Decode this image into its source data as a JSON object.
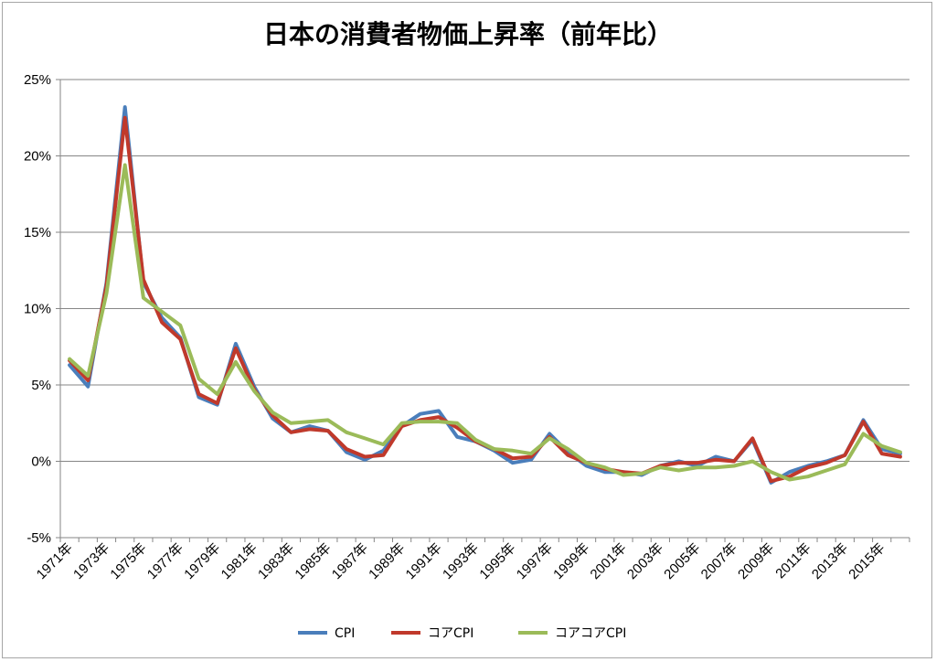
{
  "chart_data": {
    "type": "line",
    "title": "日本の消費者物価上昇率（前年比）",
    "xlabel": "",
    "ylabel": "",
    "ylim": [
      -5,
      25
    ],
    "y_ticks": [
      "25%",
      "20%",
      "15%",
      "10%",
      "5%",
      "0%",
      "-5%"
    ],
    "y_tick_values": [
      25,
      20,
      15,
      10,
      5,
      0,
      -5
    ],
    "grid": true,
    "legend_position": "bottom",
    "x": [
      1971,
      1972,
      1973,
      1974,
      1975,
      1976,
      1977,
      1978,
      1979,
      1980,
      1981,
      1982,
      1983,
      1984,
      1985,
      1986,
      1987,
      1988,
      1989,
      1990,
      1991,
      1992,
      1993,
      1994,
      1995,
      1996,
      1997,
      1998,
      1999,
      2000,
      2001,
      2002,
      2003,
      2004,
      2005,
      2006,
      2007,
      2008,
      2009,
      2010,
      2011,
      2012,
      2013,
      2014,
      2015,
      2016
    ],
    "x_tick_labels": [
      "1971年",
      "1973年",
      "1975年",
      "1977年",
      "1979年",
      "1981年",
      "1983年",
      "1985年",
      "1987年",
      "1989年",
      "1991年",
      "1993年",
      "1995年",
      "1997年",
      "1999年",
      "2001年",
      "2003年",
      "2005年",
      "2007年",
      "2009年",
      "2011年",
      "2013年",
      "2015年"
    ],
    "series": [
      {
        "name": "CPI",
        "color": "#4a7ebb",
        "values": [
          6.3,
          4.9,
          11.7,
          23.2,
          11.7,
          9.4,
          8.1,
          4.2,
          3.7,
          7.7,
          4.9,
          2.8,
          1.9,
          2.3,
          2.0,
          0.6,
          0.1,
          0.7,
          2.3,
          3.1,
          3.3,
          1.6,
          1.3,
          0.7,
          -0.1,
          0.1,
          1.8,
          0.6,
          -0.3,
          -0.7,
          -0.7,
          -0.9,
          -0.3,
          0.0,
          -0.3,
          0.3,
          0.0,
          1.4,
          -1.4,
          -0.7,
          -0.3,
          0.0,
          0.4,
          2.7,
          0.8,
          0.5
        ]
      },
      {
        "name": "コアCPI",
        "color": "#c0392b",
        "values": [
          6.6,
          5.3,
          11.5,
          22.5,
          11.9,
          9.1,
          8.0,
          4.4,
          3.8,
          7.4,
          4.7,
          3.0,
          1.9,
          2.1,
          2.0,
          0.8,
          0.3,
          0.4,
          2.3,
          2.7,
          2.9,
          2.2,
          1.3,
          0.8,
          0.2,
          0.3,
          1.6,
          0.4,
          -0.1,
          -0.5,
          -0.7,
          -0.8,
          -0.3,
          -0.1,
          -0.1,
          0.1,
          0.0,
          1.5,
          -1.3,
          -1.0,
          -0.4,
          -0.1,
          0.4,
          2.6,
          0.5,
          0.3
        ]
      },
      {
        "name": "コアコアCPI",
        "color": "#9bbb59",
        "values": [
          6.7,
          5.6,
          11.0,
          19.4,
          10.7,
          9.8,
          8.9,
          5.4,
          4.4,
          6.5,
          4.6,
          3.2,
          2.5,
          2.6,
          2.7,
          1.9,
          1.5,
          1.1,
          2.5,
          2.6,
          2.6,
          2.5,
          1.4,
          0.8,
          0.7,
          0.5,
          1.5,
          0.8,
          -0.1,
          -0.4,
          -0.9,
          -0.8,
          -0.4,
          -0.6,
          -0.4,
          -0.4,
          -0.3,
          0.0,
          -0.7,
          -1.2,
          -1.0,
          -0.6,
          -0.2,
          1.8,
          1.0,
          0.6
        ]
      }
    ]
  }
}
